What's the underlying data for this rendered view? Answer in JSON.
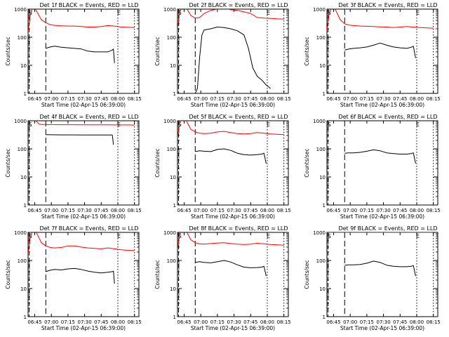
{
  "figure": {
    "xlabel": "Start Time (02-Apr-15 06:39:00)",
    "ylabel": "Counts/sec",
    "xticks": [
      "06:45",
      "07:00",
      "07:15",
      "07:30",
      "07:45",
      "08:00",
      "08:15"
    ],
    "xtick_minutes": [
      6,
      21,
      36,
      51,
      66,
      81,
      96
    ],
    "xlim_minutes": [
      0,
      100
    ],
    "yticks": [
      "1",
      "10",
      "100",
      "1000"
    ],
    "ytick_values": [
      1,
      10,
      100,
      1000
    ],
    "ylim": [
      1,
      1000
    ],
    "yscale": "log",
    "colors": {
      "events": "#000000",
      "lld": "#ff0000"
    }
  },
  "chart_data": [
    {
      "type": "line",
      "title": "Det 1f BLACK = Events, RED = LLD",
      "marks": {
        "start": "S",
        "end": "E"
      },
      "vlines": {
        "start": 16,
        "dash": 1,
        "dot": 81,
        "end": 96
      },
      "series": [
        {
          "color": "#ff0000",
          "x": [
            0,
            2,
            4,
            6,
            8,
            12,
            16,
            20,
            24,
            30,
            36,
            42,
            48,
            54,
            60,
            66,
            72,
            78,
            84,
            90,
            96
          ],
          "y": [
            160,
            600,
            1200,
            1500,
            800,
            420,
            330,
            280,
            265,
            255,
            250,
            250,
            240,
            230,
            230,
            240,
            260,
            250,
            230,
            225,
            220
          ]
        },
        {
          "color": "#000000",
          "x": [
            16,
            20,
            24,
            30,
            36,
            42,
            48,
            54,
            60,
            66,
            72,
            76,
            77,
            78
          ],
          "y": [
            40,
            45,
            48,
            44,
            42,
            40,
            38,
            32,
            30,
            30,
            30,
            35,
            38,
            12
          ]
        }
      ]
    },
    {
      "type": "line",
      "title": "Det 2f BLACK = Events, RED = LLD",
      "marks": {
        "start": "S",
        "end": "E"
      },
      "vlines": {
        "start": 16,
        "dash": 1,
        "dot": 81,
        "end": 96
      },
      "series": [
        {
          "color": "#ff0000",
          "x": [
            0,
            2,
            4,
            6,
            8,
            12,
            16,
            20,
            24,
            30,
            36,
            42,
            48,
            54,
            60,
            66,
            72,
            78,
            84,
            90,
            96
          ],
          "y": [
            200,
            800,
            1600,
            2000,
            1200,
            600,
            480,
            500,
            700,
            900,
            1000,
            1100,
            950,
            900,
            800,
            700,
            500,
            480,
            470,
            450,
            440
          ]
        },
        {
          "color": "#000000",
          "x": [
            16,
            18,
            20,
            22,
            24,
            30,
            36,
            42,
            48,
            54,
            60,
            64,
            68,
            72,
            76,
            80,
            84
          ],
          "y": [
            1,
            1.5,
            20,
            120,
            180,
            200,
            230,
            220,
            200,
            170,
            120,
            40,
            8,
            4,
            3,
            2,
            1.5
          ]
        }
      ]
    },
    {
      "type": "line",
      "title": "Det 3f BLACK = Events, RED = LLD",
      "marks": {
        "start": "S",
        "end": "E"
      },
      "vlines": {
        "start": 16,
        "dash": 1,
        "dot": 81,
        "end": 96
      },
      "series": [
        {
          "color": "#ff0000",
          "x": [
            0,
            2,
            4,
            6,
            8,
            12,
            16,
            20,
            24,
            30,
            36,
            42,
            48,
            54,
            60,
            66,
            72,
            78,
            84,
            90,
            96
          ],
          "y": [
            180,
            700,
            1400,
            1800,
            900,
            420,
            300,
            270,
            260,
            250,
            245,
            240,
            235,
            230,
            220,
            230,
            240,
            230,
            220,
            215,
            210
          ]
        },
        {
          "color": "#000000",
          "x": [
            16,
            20,
            24,
            30,
            36,
            42,
            48,
            54,
            60,
            66,
            72,
            76,
            78,
            80
          ],
          "y": [
            35,
            38,
            40,
            42,
            45,
            52,
            62,
            52,
            45,
            42,
            40,
            44,
            48,
            18
          ]
        }
      ]
    },
    {
      "type": "line",
      "title": "Det 4f BLACK = Events, RED = LLD",
      "marks": {
        "start": "S",
        "end": "E"
      },
      "vlines": {
        "start": 16,
        "dash": 1,
        "dot": 81,
        "end": 96
      },
      "series": [
        {
          "color": "#ff0000",
          "x": [
            0,
            2,
            4,
            6,
            8,
            10,
            12,
            16,
            20,
            30,
            40,
            50,
            60,
            70,
            80,
            90,
            96
          ],
          "y": [
            1000,
            1400,
            1800,
            1500,
            900,
            760,
            740,
            735,
            730,
            725,
            725,
            720,
            720,
            715,
            712,
            710,
            705
          ]
        },
        {
          "color": "#000000",
          "x": [
            16,
            20,
            30,
            40,
            50,
            60,
            70,
            76,
            77
          ],
          "y": [
            320,
            318,
            315,
            315,
            312,
            310,
            310,
            312,
            140
          ]
        }
      ]
    },
    {
      "type": "line",
      "title": "Det 5f BLACK = Events, RED = LLD",
      "marks": {
        "start": "S",
        "end": "E"
      },
      "vlines": {
        "start": 16,
        "dash": 1,
        "dot": 81,
        "end": 96
      },
      "series": [
        {
          "color": "#ff0000",
          "x": [
            0,
            2,
            4,
            6,
            8,
            12,
            16,
            20,
            24,
            30,
            36,
            42,
            48,
            54,
            60,
            66,
            72,
            78,
            84,
            90,
            96
          ],
          "y": [
            250,
            900,
            1700,
            1900,
            1000,
            500,
            400,
            360,
            350,
            360,
            400,
            420,
            380,
            350,
            340,
            350,
            380,
            360,
            340,
            330,
            320
          ]
        },
        {
          "color": "#000000",
          "x": [
            16,
            20,
            24,
            30,
            36,
            42,
            48,
            54,
            60,
            66,
            72,
            76,
            78,
            80
          ],
          "y": [
            80,
            85,
            82,
            80,
            95,
            100,
            88,
            70,
            62,
            60,
            62,
            65,
            70,
            30
          ]
        }
      ]
    },
    {
      "type": "line",
      "title": "Det 6f BLACK = Events, RED = LLD",
      "marks": {
        "start": "S",
        "end": "E"
      },
      "vlines": {
        "start": 16,
        "dash": 1,
        "dot": 81,
        "end": 96
      },
      "series": [
        {
          "color": "#000000",
          "x": [
            16,
            20,
            24,
            30,
            36,
            42,
            48,
            54,
            60,
            66,
            72,
            76,
            78,
            80
          ],
          "y": [
            70,
            72,
            72,
            75,
            82,
            92,
            85,
            72,
            68,
            65,
            65,
            68,
            72,
            30
          ]
        }
      ]
    },
    {
      "type": "line",
      "title": "Det 7f BLACK = Events, RED = LLD",
      "marks": {
        "start": "S",
        "end": "E"
      },
      "vlines": {
        "start": 16,
        "dash": 1,
        "dot": 81,
        "end": 96
      },
      "series": [
        {
          "color": "#ff0000",
          "x": [
            0,
            2,
            4,
            6,
            8,
            12,
            16,
            20,
            24,
            30,
            36,
            42,
            48,
            54,
            60,
            66,
            72,
            78,
            84,
            90,
            96
          ],
          "y": [
            180,
            700,
            1400,
            1800,
            900,
            430,
            330,
            290,
            280,
            290,
            330,
            330,
            300,
            280,
            270,
            260,
            280,
            260,
            240,
            230,
            225
          ]
        },
        {
          "color": "#000000",
          "x": [
            16,
            20,
            24,
            30,
            36,
            42,
            48,
            54,
            60,
            66,
            72,
            76,
            77,
            78
          ],
          "y": [
            40,
            45,
            48,
            46,
            50,
            52,
            48,
            42,
            38,
            36,
            38,
            40,
            42,
            15
          ]
        }
      ]
    },
    {
      "type": "line",
      "title": "Det 8f BLACK = Events, RED = LLD",
      "marks": {
        "start": "S",
        "end": "E"
      },
      "vlines": {
        "start": 16,
        "dash": 1,
        "dot": 81,
        "end": 96
      },
      "series": [
        {
          "color": "#ff0000",
          "x": [
            0,
            2,
            4,
            6,
            8,
            12,
            16,
            20,
            24,
            30,
            36,
            42,
            48,
            54,
            60,
            66,
            72,
            78,
            84,
            90,
            96
          ],
          "y": [
            250,
            900,
            1700,
            2000,
            1100,
            550,
            430,
            390,
            380,
            400,
            420,
            430,
            400,
            380,
            370,
            380,
            410,
            390,
            370,
            360,
            350
          ]
        },
        {
          "color": "#000000",
          "x": [
            16,
            20,
            24,
            30,
            36,
            42,
            48,
            54,
            60,
            66,
            72,
            76,
            78,
            80
          ],
          "y": [
            85,
            90,
            85,
            82,
            90,
            100,
            88,
            70,
            58,
            55,
            56,
            58,
            62,
            28
          ]
        }
      ]
    },
    {
      "type": "line",
      "title": "Det 9f BLACK = Events, RED = LLD",
      "marks": {
        "start": "S",
        "end": "E"
      },
      "vlines": {
        "start": 16,
        "dash": 1,
        "dot": 81,
        "end": 96
      },
      "series": [
        {
          "color": "#ff0000",
          "x": [
            0,
            10,
            20,
            30,
            40,
            50,
            60,
            70,
            80,
            90,
            96
          ],
          "y": [
            1000,
            1000,
            1000,
            1000,
            1000,
            1000,
            1000,
            1000,
            1000,
            1000,
            1000
          ]
        },
        {
          "color": "#000000",
          "x": [
            16,
            20,
            24,
            30,
            36,
            42,
            48,
            54,
            60,
            66,
            72,
            76,
            78,
            80
          ],
          "y": [
            68,
            70,
            70,
            72,
            80,
            95,
            85,
            68,
            62,
            60,
            60,
            62,
            66,
            28
          ]
        }
      ]
    }
  ]
}
